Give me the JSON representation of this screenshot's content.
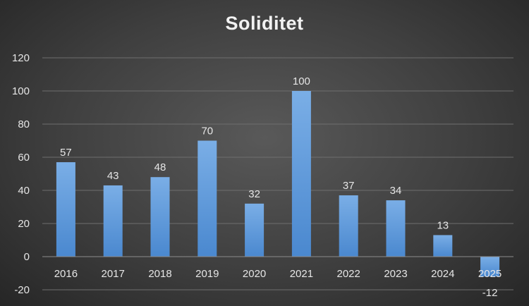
{
  "chart_data": {
    "type": "bar",
    "title": "Soliditet",
    "categories": [
      "2016",
      "2017",
      "2018",
      "2019",
      "2020",
      "2021",
      "2022",
      "2023",
      "2024",
      "2025"
    ],
    "values": [
      57,
      43,
      48,
      70,
      32,
      100,
      37,
      34,
      13,
      -12
    ],
    "data_labels": [
      "57",
      "43",
      "48",
      "70",
      "32",
      "100",
      "37",
      "34",
      "13",
      "-12"
    ],
    "xlabel": "",
    "ylabel": "",
    "ylim": [
      -20,
      120
    ],
    "yticks": [
      "-20",
      "0",
      "20",
      "40",
      "60",
      "80",
      "100",
      "120"
    ],
    "grid": true,
    "legend": "none",
    "colors": {
      "bar_top": "#7aaee6",
      "bar_bottom": "#4a88cf",
      "gridline": "#6e6e6e",
      "axis_line": "#8c8c8c"
    }
  }
}
